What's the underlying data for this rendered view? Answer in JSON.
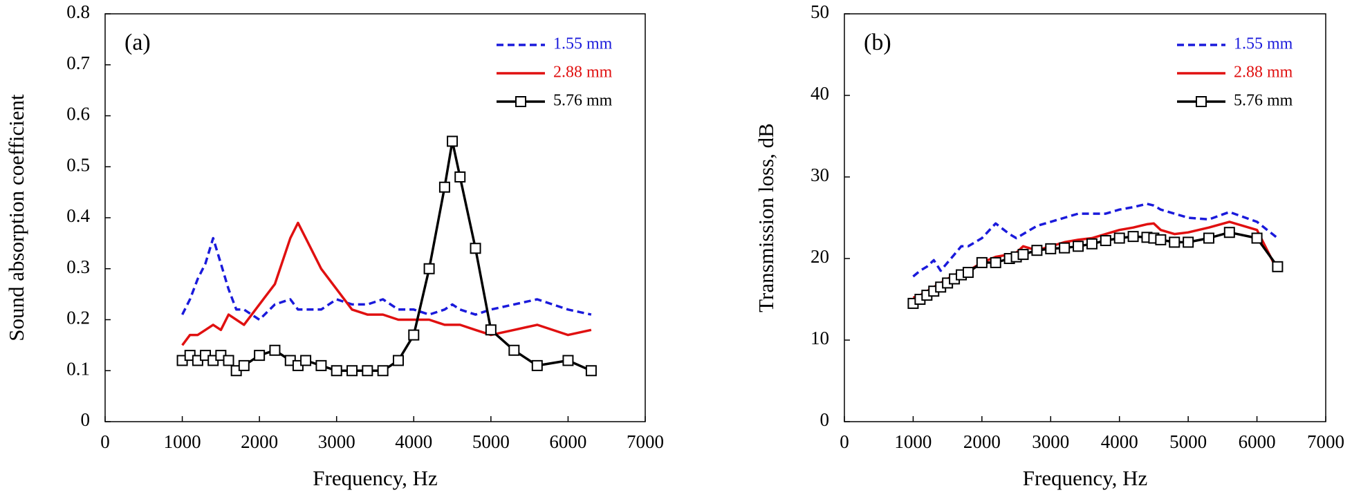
{
  "chart_data": [
    {
      "type": "line",
      "label": "(a)",
      "xlabel": "Frequency, Hz",
      "ylabel": "Sound absorption coefficient",
      "xlim": [
        0,
        7000
      ],
      "xticks": [
        0,
        1000,
        2000,
        3000,
        4000,
        5000,
        6000,
        7000
      ],
      "ylim": [
        0,
        0.8
      ],
      "yticks": [
        0,
        0.1,
        0.2,
        0.3,
        0.4,
        0.5,
        0.6,
        0.7,
        0.8
      ],
      "legend": "upper right",
      "x": [
        1000,
        1100,
        1200,
        1300,
        1400,
        1500,
        1600,
        1700,
        1800,
        2000,
        2200,
        2400,
        2500,
        2600,
        2800,
        3000,
        3200,
        3400,
        3600,
        3800,
        4000,
        4200,
        4400,
        4500,
        4600,
        4800,
        5000,
        5300,
        5600,
        6000,
        6300
      ],
      "series": [
        {
          "name": "1.55 mm",
          "color": "#1a1adb",
          "style": "dashed",
          "values": [
            0.21,
            0.24,
            0.28,
            0.31,
            0.36,
            0.31,
            0.26,
            0.22,
            0.22,
            0.2,
            0.23,
            0.24,
            0.22,
            0.22,
            0.22,
            0.24,
            0.23,
            0.23,
            0.24,
            0.22,
            0.22,
            0.21,
            0.22,
            0.23,
            0.22,
            0.21,
            0.22,
            0.23,
            0.24,
            0.22,
            0.21
          ]
        },
        {
          "name": "2.88 mm",
          "color": "#e01010",
          "style": "solid",
          "values": [
            0.15,
            0.17,
            0.17,
            0.18,
            0.19,
            0.18,
            0.21,
            0.2,
            0.19,
            0.23,
            0.27,
            0.36,
            0.39,
            0.36,
            0.3,
            0.26,
            0.22,
            0.21,
            0.21,
            0.2,
            0.2,
            0.2,
            0.19,
            0.19,
            0.19,
            0.18,
            0.17,
            0.18,
            0.19,
            0.17,
            0.18
          ]
        },
        {
          "name": "5.76 mm",
          "color": "#000000",
          "style": "solid",
          "marker": "square",
          "values": [
            0.12,
            0.13,
            0.12,
            0.13,
            0.12,
            0.13,
            0.12,
            0.1,
            0.11,
            0.13,
            0.14,
            0.12,
            0.11,
            0.12,
            0.11,
            0.1,
            0.1,
            0.1,
            0.1,
            0.12,
            0.17,
            0.3,
            0.46,
            0.55,
            0.48,
            0.34,
            0.18,
            0.14,
            0.11,
            0.12,
            0.1
          ]
        }
      ]
    },
    {
      "type": "line",
      "label": "(b)",
      "xlabel": "Frequency, Hz",
      "ylabel": "Transmission loss, dB",
      "xlim": [
        0,
        7000
      ],
      "xticks": [
        0,
        1000,
        2000,
        3000,
        4000,
        5000,
        6000,
        7000
      ],
      "ylim": [
        0,
        50
      ],
      "yticks": [
        0,
        10,
        20,
        30,
        40,
        50
      ],
      "legend": "upper right",
      "x": [
        1000,
        1100,
        1200,
        1300,
        1400,
        1500,
        1600,
        1700,
        1800,
        2000,
        2200,
        2400,
        2500,
        2600,
        2800,
        3000,
        3200,
        3400,
        3600,
        3800,
        4000,
        4200,
        4400,
        4500,
        4600,
        4800,
        5000,
        5300,
        5600,
        6000,
        6300
      ],
      "series": [
        {
          "name": "1.55 mm",
          "color": "#1a1adb",
          "style": "dashed",
          "values": [
            17.8,
            18.5,
            19,
            19.8,
            18.5,
            19.5,
            20.5,
            21.5,
            21.5,
            22.5,
            24.3,
            23,
            22.5,
            23,
            24,
            24.5,
            25,
            25.5,
            25.5,
            25.5,
            26,
            26.3,
            26.7,
            26.5,
            26,
            25.5,
            25,
            24.8,
            25.7,
            24.5,
            22.5
          ]
        },
        {
          "name": "2.88 mm",
          "color": "#e01010",
          "style": "solid",
          "values": [
            15.2,
            15.5,
            16,
            16.5,
            17,
            17.5,
            18,
            18.3,
            18.5,
            19.5,
            20.2,
            20.5,
            20.7,
            21.5,
            21,
            21.5,
            22,
            22.3,
            22.5,
            23,
            23.5,
            23.8,
            24.2,
            24.3,
            23.5,
            23,
            23.2,
            23.8,
            24.5,
            23.5,
            18.5
          ]
        },
        {
          "name": "5.76 mm",
          "color": "#000000",
          "style": "solid",
          "marker": "square",
          "values": [
            14.5,
            15,
            15.5,
            16,
            16.5,
            17,
            17.5,
            18,
            18.3,
            19.5,
            19.5,
            20,
            20.2,
            20.5,
            21,
            21.2,
            21.3,
            21.5,
            21.8,
            22.2,
            22.5,
            22.7,
            22.6,
            22.5,
            22.3,
            22,
            22,
            22.5,
            23.2,
            22.5,
            19
          ]
        }
      ]
    }
  ]
}
